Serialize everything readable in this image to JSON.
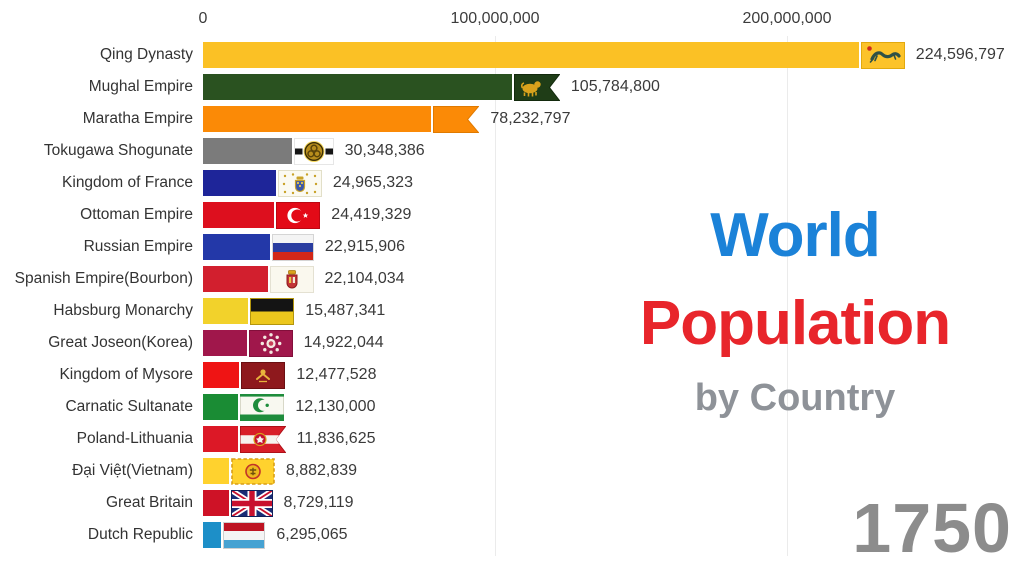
{
  "colors": {
    "background": "#FFFFFF",
    "title_line1": "#1B82D8",
    "title_line2": "#E8252B",
    "subtitle": "#8E9298",
    "year": "#8C8C8C",
    "axis_text": "#3C3C3C",
    "label_text": "#333333",
    "value_text": "#3A3A3A",
    "gridline": "#EBEBEB"
  },
  "chart_data": {
    "type": "bar",
    "orientation": "horizontal",
    "title_line1": "World",
    "title_line2": "Population",
    "subtitle": "by Country",
    "year": "1750",
    "axis": {
      "ticks": [
        {
          "label": "0",
          "value": 0
        },
        {
          "label": "100,000,000",
          "value": 100000000
        },
        {
          "label": "200,000,000",
          "value": 200000000
        }
      ],
      "xlim": [
        0,
        280000000
      ],
      "grid": true
    },
    "bars": [
      {
        "label": "Qing Dynasty",
        "value": 224596797,
        "value_label": "224,596,797",
        "color": "#FBC125",
        "flag": "qing-dragon-flag"
      },
      {
        "label": "Mughal Empire",
        "value": 105784800,
        "value_label": "105,784,800",
        "color": "#2A5220",
        "flag": "mughal-lion-flag"
      },
      {
        "label": "Maratha Empire",
        "value": 78232797,
        "value_label": "78,232,797",
        "color": "#FB8A06",
        "flag": "maratha-swallowtail-flag"
      },
      {
        "label": "Tokugawa Shogunate",
        "value": 30348386,
        "value_label": "30,348,386",
        "color": "#7B7B7B",
        "flag": "tokugawa-mon-flag"
      },
      {
        "label": "Kingdom of France",
        "value": 24965323,
        "value_label": "24,965,323",
        "color": "#1E2599",
        "flag": "france-royal-flag"
      },
      {
        "label": "Ottoman Empire",
        "value": 24419329,
        "value_label": "24,419,329",
        "color": "#DD0F1E",
        "flag": "ottoman-crescent-flag"
      },
      {
        "label": "Russian Empire",
        "value": 22915906,
        "value_label": "22,915,906",
        "color": "#2338A8",
        "flag": "russia-tricolor-flag"
      },
      {
        "label": "Spanish Empire(Bourbon)",
        "value": 22104034,
        "value_label": "22,104,034",
        "color": "#D21F2E",
        "flag": "spain-bourbon-flag"
      },
      {
        "label": "Habsburg Monarchy",
        "value": 15487341,
        "value_label": "15,487,341",
        "color": "#F2D22B",
        "flag": "habsburg-flag"
      },
      {
        "label": "Great Joseon(Korea)",
        "value": 14922044,
        "value_label": "14,922,044",
        "color": "#A0174B",
        "flag": "joseon-flag"
      },
      {
        "label": "Kingdom of Mysore",
        "value": 12477528,
        "value_label": "12,477,528",
        "color": "#EF1414",
        "flag": "mysore-flag"
      },
      {
        "label": "Carnatic Sultanate",
        "value": 12130000,
        "value_label": "12,130,000",
        "color": "#1A8C34",
        "flag": "carnatic-crescent-flag"
      },
      {
        "label": "Poland-Lithuania",
        "value": 11836625,
        "value_label": "11,836,625",
        "color": "#DC1826",
        "flag": "poland-lithuania-eagle-flag"
      },
      {
        "label": "Đại Việt(Vietnam)",
        "value": 8882839,
        "value_label": "8,882,839",
        "color": "#FFD22E",
        "flag": "dai-viet-flag"
      },
      {
        "label": "Great Britain",
        "value": 8729119,
        "value_label": "8,729,119",
        "color": "#CE1226",
        "flag": "great-britain-union-flag"
      },
      {
        "label": "Dutch Republic",
        "value": 6295065,
        "value_label": "6,295,065",
        "color": "#1D8FC8",
        "flag": "dutch-republic-tricolor-flag"
      }
    ]
  }
}
